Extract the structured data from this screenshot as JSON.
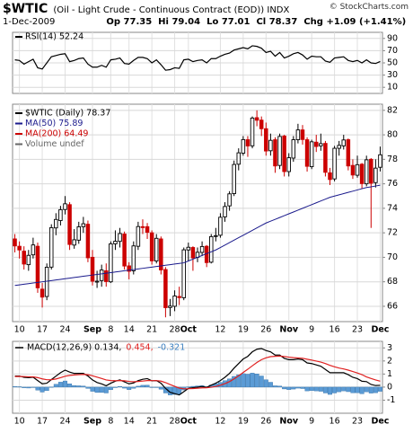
{
  "header": {
    "symbol": "$WTIC",
    "name": "(Oil - Light Crude - Continuous Contract (EOD))",
    "exchange": "INDX",
    "credit": "© StockCharts.com",
    "date": "1-Dec-2009",
    "quote": [
      "Op 77.35",
      "Hi 79.04",
      "Lo 77.01",
      "Cl 78.37",
      "Chg +1.09 (+1.41%)"
    ]
  },
  "chart_data": [
    {
      "type": "line",
      "ylim": [
        0,
        100
      ],
      "yticks": [
        10,
        30,
        50,
        70,
        90
      ],
      "grid": true,
      "series": [
        {
          "name": "RSI(14) 52.24",
          "color": "#000000",
          "values": [
            55,
            54,
            48,
            52,
            56,
            42,
            40,
            50,
            60,
            62,
            64,
            65,
            52,
            54,
            57,
            58,
            48,
            43,
            43,
            46,
            43,
            55,
            56,
            58,
            49,
            48,
            54,
            59,
            59,
            57,
            50,
            55,
            47,
            38,
            39,
            42,
            41,
            55,
            56,
            52,
            54,
            55,
            50,
            57,
            57,
            61,
            64,
            66,
            71,
            73,
            75,
            73,
            78,
            77,
            74,
            67,
            69,
            61,
            67,
            58,
            61,
            65,
            67,
            63,
            56,
            61,
            60,
            60,
            53,
            51,
            58,
            59,
            60,
            54,
            52,
            54,
            50,
            55,
            50,
            49,
            52.24
          ]
        }
      ]
    },
    {
      "type": "candlestick",
      "ylim": [
        64.75,
        82.5
      ],
      "yticks": [
        66,
        68,
        70,
        72,
        74,
        76,
        78,
        80,
        82
      ],
      "grid": true,
      "categories": [
        null,
        "10",
        null,
        null,
        null,
        null,
        "17",
        null,
        null,
        null,
        null,
        "24",
        null,
        null,
        null,
        null,
        null,
        "Sep",
        null,
        null,
        null,
        "8",
        null,
        null,
        null,
        "14",
        null,
        null,
        null,
        null,
        "21",
        null,
        null,
        null,
        null,
        "28",
        null,
        null,
        "Oct",
        null,
        null,
        null,
        null,
        null,
        null,
        "12",
        null,
        null,
        null,
        null,
        "19",
        null,
        null,
        null,
        null,
        "26",
        null,
        null,
        null,
        null,
        "Nov",
        null,
        null,
        null,
        null,
        "9",
        null,
        null,
        null,
        null,
        "16",
        null,
        null,
        null,
        null,
        "23",
        null,
        null,
        null,
        null,
        "Dec"
      ],
      "series": [
        {
          "name": "$WTIC (Daily) 78.37",
          "type": "candlestick",
          "up_color": "#000000",
          "down_color": "#cc0000",
          "open": [
            71.5,
            70.9,
            70.5,
            69.4,
            70.2,
            70.9,
            67.4,
            66.8,
            69.2,
            72.4,
            73.0,
            73.9,
            74.3,
            71.0,
            71.4,
            72.5,
            72.7,
            70.0,
            68.0,
            68.1,
            68.9,
            68.0,
            71.1,
            71.3,
            71.9,
            69.3,
            68.9,
            70.9,
            72.5,
            72.5,
            72.0,
            69.7,
            71.5,
            69.0,
            65.9,
            66.0,
            66.8,
            66.7,
            70.6,
            70.8,
            70.0,
            70.4,
            70.9,
            69.6,
            71.7,
            71.8,
            73.3,
            74.2,
            75.2,
            77.6,
            78.5,
            79.6,
            79.1,
            81.4,
            81.2,
            80.5,
            78.7,
            79.6,
            77.5,
            79.9,
            77.0,
            78.1,
            79.6,
            80.4,
            79.6,
            77.4,
            79.4,
            79.1,
            79.3,
            76.9,
            76.4,
            78.9,
            79.1,
            79.6,
            77.5,
            76.7,
            77.6,
            76.0,
            78.0,
            76.1,
            77.35
          ],
          "high": [
            71.9,
            71.3,
            70.9,
            70.6,
            71.6,
            71.2,
            67.9,
            69.5,
            72.7,
            73.6,
            74.2,
            75.0,
            74.5,
            72.3,
            72.9,
            73.3,
            73.0,
            70.6,
            68.9,
            69.4,
            69.5,
            71.3,
            72.2,
            72.4,
            72.1,
            69.6,
            71.3,
            72.9,
            73.1,
            72.8,
            72.2,
            71.9,
            71.7,
            69.2,
            66.6,
            67.3,
            67.6,
            70.8,
            71.2,
            70.9,
            70.8,
            71.3,
            71.0,
            71.9,
            72.4,
            73.6,
            74.5,
            75.4,
            77.9,
            78.9,
            79.9,
            79.9,
            81.5,
            82.0,
            81.5,
            81.0,
            80.1,
            79.8,
            80.1,
            80.0,
            78.5,
            79.9,
            80.9,
            80.8,
            79.8,
            79.6,
            80.0,
            80.1,
            79.5,
            77.3,
            79.1,
            79.5,
            80.0,
            79.7,
            78.0,
            78.3,
            77.7,
            78.3,
            78.1,
            78.0,
            79.04
          ],
          "low": [
            70.4,
            69.9,
            69.0,
            68.9,
            69.9,
            67.1,
            65.9,
            66.5,
            69.0,
            71.8,
            72.6,
            73.5,
            70.6,
            70.7,
            71.1,
            72.0,
            69.6,
            67.7,
            67.5,
            67.6,
            67.6,
            67.9,
            70.6,
            70.8,
            69.0,
            68.2,
            68.6,
            70.6,
            71.9,
            71.5,
            69.4,
            69.5,
            68.6,
            65.1,
            65.2,
            65.6,
            66.1,
            66.5,
            69.7,
            68.9,
            69.6,
            70.1,
            69.2,
            69.5,
            71.3,
            71.6,
            72.9,
            73.8,
            75.0,
            77.1,
            78.3,
            78.2,
            78.9,
            80.7,
            79.9,
            78.3,
            78.3,
            76.9,
            77.2,
            76.6,
            76.6,
            77.8,
            79.3,
            79.2,
            77.0,
            77.2,
            78.6,
            78.7,
            76.6,
            75.9,
            76.2,
            78.3,
            78.8,
            77.1,
            76.4,
            76.5,
            75.6,
            75.8,
            72.4,
            75.7,
            77.01
          ],
          "close": [
            70.93,
            70.6,
            69.45,
            70.16,
            71.01,
            67.51,
            66.75,
            69.19,
            72.42,
            73.09,
            73.89,
            74.37,
            71.05,
            71.43,
            72.49,
            72.74,
            69.96,
            68.05,
            68.05,
            68.96,
            68.02,
            71.1,
            71.31,
            71.94,
            69.29,
            68.86,
            70.93,
            72.51,
            72.47,
            72.04,
            69.71,
            71.55,
            68.97,
            65.89,
            66.02,
            66.84,
            66.71,
            70.61,
            70.82,
            69.95,
            70.41,
            70.88,
            69.57,
            71.69,
            71.77,
            73.27,
            74.15,
            75.18,
            77.58,
            78.53,
            79.61,
            79.09,
            81.37,
            81.19,
            80.5,
            78.68,
            79.55,
            77.46,
            79.87,
            77.0,
            78.13,
            79.6,
            80.4,
            79.62,
            77.43,
            79.43,
            79.05,
            79.28,
            76.94,
            76.35,
            78.9,
            79.14,
            79.58,
            77.46,
            76.72,
            77.56,
            76.02,
            77.96,
            76.05,
            77.28,
            78.37
          ]
        },
        {
          "name": "MA(50) 75.89",
          "color": "#1a1a8c",
          "values": [
            67.7,
            67.75,
            67.8,
            67.85,
            67.9,
            67.95,
            68.0,
            68.05,
            68.1,
            68.15,
            68.2,
            68.25,
            68.3,
            68.35,
            68.4,
            68.45,
            68.5,
            68.55,
            68.6,
            68.65,
            68.7,
            68.75,
            68.8,
            68.85,
            68.9,
            68.95,
            69.0,
            69.05,
            69.1,
            69.15,
            69.2,
            69.25,
            69.3,
            69.35,
            69.4,
            69.45,
            69.5,
            69.55,
            69.7,
            69.85,
            70.0,
            70.15,
            70.3,
            70.45,
            70.6,
            70.8,
            71.0,
            71.2,
            71.4,
            71.6,
            71.8,
            72.0,
            72.2,
            72.4,
            72.6,
            72.8,
            72.95,
            73.1,
            73.25,
            73.4,
            73.55,
            73.7,
            73.85,
            74.0,
            74.15,
            74.3,
            74.45,
            74.6,
            74.75,
            74.9,
            75.0,
            75.1,
            75.2,
            75.3,
            75.4,
            75.5,
            75.6,
            75.7,
            75.75,
            75.82,
            75.89
          ]
        },
        {
          "name": "MA(200) 64.49",
          "color": "#cc0000"
        },
        {
          "name": "Volume undef",
          "color": "#666666"
        }
      ]
    },
    {
      "type": "line",
      "ylim": [
        -2,
        3.5
      ],
      "yticks": [
        -1,
        0,
        1,
        2,
        3
      ],
      "grid": true,
      "series": [
        {
          "name": "-0.321",
          "type": "bar",
          "color": "#5b9bd5",
          "values": [
            0.04,
            0.03,
            -0.05,
            -0.07,
            -0.02,
            -0.23,
            -0.38,
            -0.27,
            0.01,
            0.22,
            0.38,
            0.47,
            0.25,
            0.12,
            0.1,
            0.08,
            -0.1,
            -0.32,
            -0.41,
            -0.41,
            -0.45,
            -0.2,
            -0.04,
            0.05,
            -0.08,
            -0.19,
            -0.09,
            0.07,
            0.14,
            0.15,
            -0.02,
            0,
            -0.16,
            -0.45,
            -0.6,
            -0.56,
            -0.53,
            -0.22,
            0.02,
            0.06,
            0.09,
            0.11,
            0.03,
            0.16,
            0.25,
            0.36,
            0.49,
            0.63,
            0.82,
            0.94,
            1.03,
            0.99,
            1.07,
            1.01,
            0.85,
            0.56,
            0.37,
            0.1,
            0.08,
            -0.14,
            -0.19,
            -0.15,
            -0.08,
            -0.11,
            -0.29,
            -0.27,
            -0.29,
            -0.32,
            -0.45,
            -0.56,
            -0.45,
            -0.36,
            -0.29,
            -0.35,
            -0.44,
            -0.43,
            -0.51,
            -0.36,
            -0.46,
            -0.43,
            -0.321
          ]
        },
        {
          "name": "MACD(12,26,9) 0.134,",
          "color": "#000000",
          "values": [
            0.85,
            0.85,
            0.75,
            0.72,
            0.76,
            0.5,
            0.25,
            0.3,
            0.58,
            0.84,
            1.1,
            1.3,
            1.15,
            1.05,
            1.05,
            1.05,
            0.85,
            0.55,
            0.35,
            0.25,
            0.1,
            0.3,
            0.45,
            0.55,
            0.4,
            0.25,
            0.32,
            0.5,
            0.6,
            0.65,
            0.48,
            0.5,
            0.3,
            -0.1,
            -0.4,
            -0.5,
            -0.6,
            -0.35,
            -0.1,
            -0.05,
            0.0,
            0.05,
            -0.02,
            0.15,
            0.3,
            0.5,
            0.75,
            1.05,
            1.45,
            1.8,
            2.15,
            2.35,
            2.7,
            2.9,
            2.95,
            2.8,
            2.7,
            2.45,
            2.45,
            2.2,
            2.1,
            2.1,
            2.15,
            2.1,
            1.85,
            1.8,
            1.7,
            1.6,
            1.35,
            1.1,
            1.1,
            1.1,
            1.1,
            0.95,
            0.75,
            0.65,
            0.45,
            0.42,
            0.2,
            0.12,
            0.134
          ]
        },
        {
          "name": "0.454,",
          "color": "#e02020",
          "values": [
            0.81,
            0.818,
            0.804,
            0.788,
            0.782,
            0.726,
            0.631,
            0.565,
            0.568,
            0.622,
            0.718,
            0.834,
            0.897,
            0.928,
            0.952,
            0.972,
            0.948,
            0.868,
            0.764,
            0.661,
            0.549,
            0.499,
            0.489,
            0.501,
            0.481,
            0.435,
            0.412,
            0.43,
            0.464,
            0.501,
            0.497,
            0.498,
            0.458,
            0.346,
            0.197,
            0.058,
            -0.074,
            -0.129,
            -0.123,
            -0.108,
            -0.086,
            -0.059,
            -0.051,
            -0.011,
            0.051,
            0.141,
            0.263,
            0.42,
            0.626,
            0.861,
            1.119,
            1.365,
            1.632,
            1.886,
            2.099,
            2.239,
            2.331,
            2.355,
            2.374,
            2.339,
            2.291,
            2.253,
            2.232,
            2.206,
            2.135,
            2.068,
            1.994,
            1.915,
            1.802,
            1.662,
            1.55,
            1.46,
            1.388,
            1.3,
            1.19,
            1.082,
            0.956,
            0.78,
            0.66,
            0.55,
            0.454
          ]
        }
      ]
    }
  ]
}
